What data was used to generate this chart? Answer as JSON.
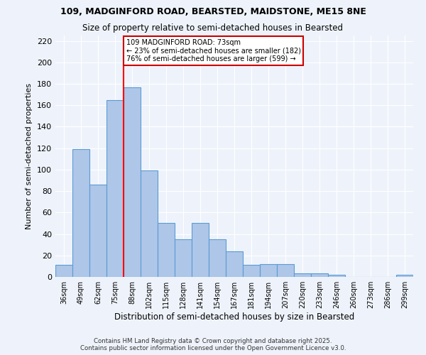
{
  "title1": "109, MADGINFORD ROAD, BEARSTED, MAIDSTONE, ME15 8NE",
  "title2": "Size of property relative to semi-detached houses in Bearsted",
  "xlabel": "Distribution of semi-detached houses by size in Bearsted",
  "ylabel": "Number of semi-detached properties",
  "categories": [
    "36sqm",
    "49sqm",
    "62sqm",
    "75sqm",
    "88sqm",
    "102sqm",
    "115sqm",
    "128sqm",
    "141sqm",
    "154sqm",
    "167sqm",
    "181sqm",
    "194sqm",
    "207sqm",
    "220sqm",
    "233sqm",
    "246sqm",
    "260sqm",
    "273sqm",
    "286sqm",
    "299sqm"
  ],
  "values": [
    11,
    119,
    86,
    165,
    177,
    99,
    50,
    35,
    50,
    35,
    24,
    11,
    12,
    12,
    3,
    3,
    2,
    0,
    0,
    0,
    2
  ],
  "bar_color": "#aec6e8",
  "bar_edge_color": "#5b9bd5",
  "red_line_x": 3.5,
  "property_label": "109 MADGINFORD ROAD: 73sqm",
  "annotation_line1": "← 23% of semi-detached houses are smaller (182)",
  "annotation_line2": "76% of semi-detached houses are larger (599) →",
  "annotation_box_color": "#ffffff",
  "annotation_box_edge_color": "#cc0000",
  "ylim": [
    0,
    225
  ],
  "yticks": [
    0,
    20,
    40,
    60,
    80,
    100,
    120,
    140,
    160,
    180,
    200,
    220
  ],
  "bg_color": "#eef3fb",
  "grid_color": "#ffffff",
  "footnote1": "Contains HM Land Registry data © Crown copyright and database right 2025.",
  "footnote2": "Contains public sector information licensed under the Open Government Licence v3.0."
}
